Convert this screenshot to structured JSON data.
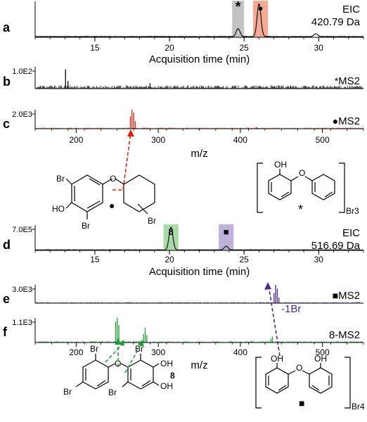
{
  "chart_data": [
    {
      "panel": "a",
      "type": "line",
      "color": "#000000",
      "xlabel": "Acquisition time (min)",
      "xlim": [
        11,
        33
      ],
      "ylim": [
        0,
        1
      ],
      "xticks": [
        "15",
        "20",
        "25",
        "30"
      ],
      "label_lines": [
        "EIC",
        "420.79 Da"
      ],
      "highlights": [
        {
          "symbol": "*",
          "range": [
            24.2,
            25.0
          ],
          "color": "#b8b8b8"
        },
        {
          "symbol": "●",
          "range": [
            25.6,
            26.6
          ],
          "color": "#f29a80"
        }
      ],
      "peaks": [
        {
          "x": 24.6,
          "y": 0.22
        },
        {
          "x": 26.0,
          "y": 0.92
        },
        {
          "x": 29.8,
          "y": 0.08
        }
      ]
    },
    {
      "panel": "b",
      "type": "bar",
      "color": "#000000",
      "ymax_label": "1.0E2",
      "label": "MS2",
      "label_symbol": "*",
      "xlim": [
        150,
        550
      ],
      "peaks": [
        {
          "mz": 187,
          "y": 0.88
        },
        {
          "mz": 190,
          "y": 0.35
        },
        {
          "mz": 290,
          "y": 0.25
        }
      ]
    },
    {
      "panel": "c",
      "type": "bar",
      "color": "#e02010",
      "ymax_label": "2.0E3",
      "label": "MS2",
      "label_symbol": "●",
      "xlabel": "m/z",
      "xlim": [
        150,
        550
      ],
      "xticks": [
        "200",
        "300",
        "400",
        "500"
      ],
      "peaks": [
        {
          "mz": 266,
          "y": 0.65
        },
        {
          "mz": 268,
          "y": 1.0
        },
        {
          "mz": 270,
          "y": 0.85
        },
        {
          "mz": 272,
          "y": 0.4
        },
        {
          "mz": 420,
          "y": 0.08
        }
      ]
    },
    {
      "panel": "d",
      "type": "line",
      "color": "#000000",
      "ymax_label": "7.0E5",
      "xlabel": "Acquisition time (min)",
      "xlim": [
        11,
        33
      ],
      "ylim": [
        0,
        1
      ],
      "xticks": [
        "15",
        "20",
        "25",
        "30"
      ],
      "label_lines": [
        "EIC",
        "516.69 Da"
      ],
      "highlights": [
        {
          "symbol": "8",
          "range": [
            19.6,
            20.6
          ],
          "color": "#9ad39a"
        },
        {
          "symbol": "■",
          "range": [
            23.3,
            24.3
          ],
          "color": "#b3a4d4"
        }
      ],
      "peaks": [
        {
          "x": 20.1,
          "y": 0.9
        },
        {
          "x": 23.8,
          "y": 0.15
        }
      ]
    },
    {
      "panel": "e",
      "type": "bar",
      "color": "#4a2d8f",
      "ymax_label": "3.0E3",
      "label": "MS2",
      "label_symbol": "■",
      "xlim": [
        150,
        550
      ],
      "peaks": [
        {
          "mz": 441,
          "y": 0.55
        },
        {
          "mz": 443,
          "y": 1.0
        },
        {
          "mz": 445,
          "y": 0.8
        },
        {
          "mz": 447,
          "y": 0.3
        }
      ]
    },
    {
      "panel": "f",
      "type": "bar",
      "color": "#1f9a3a",
      "ymax_label": "1.1E3",
      "label": "8-MS2",
      "xlabel": "m/z",
      "xlim": [
        150,
        550
      ],
      "xticks": [
        "200",
        "300",
        "400",
        "500"
      ],
      "peaks": [
        {
          "mz": 248,
          "y": 0.85
        },
        {
          "mz": 250,
          "y": 1.0
        },
        {
          "mz": 252,
          "y": 0.7
        },
        {
          "mz": 282,
          "y": 0.35
        },
        {
          "mz": 284,
          "y": 0.6
        },
        {
          "mz": 286,
          "y": 0.3
        },
        {
          "mz": 437,
          "y": 0.15
        },
        {
          "mz": 439,
          "y": 0.25
        }
      ]
    }
  ],
  "annotations": {
    "neutral_loss": "-1Br",
    "structure_1": {
      "atoms": [
        "Br",
        "HO",
        "Br",
        "Br"
      ],
      "marker": "●"
    },
    "structure_2": {
      "atoms": [
        "OH"
      ],
      "subscript": "Br3",
      "marker": "*"
    },
    "structure_3": {
      "atoms": [
        "Br",
        "Br",
        "Br",
        "Br",
        "OH",
        "OH"
      ],
      "compound": "8"
    },
    "structure_4": {
      "atoms": [
        "OH",
        "OH"
      ],
      "subscript": "Br4",
      "marker": "■"
    }
  }
}
